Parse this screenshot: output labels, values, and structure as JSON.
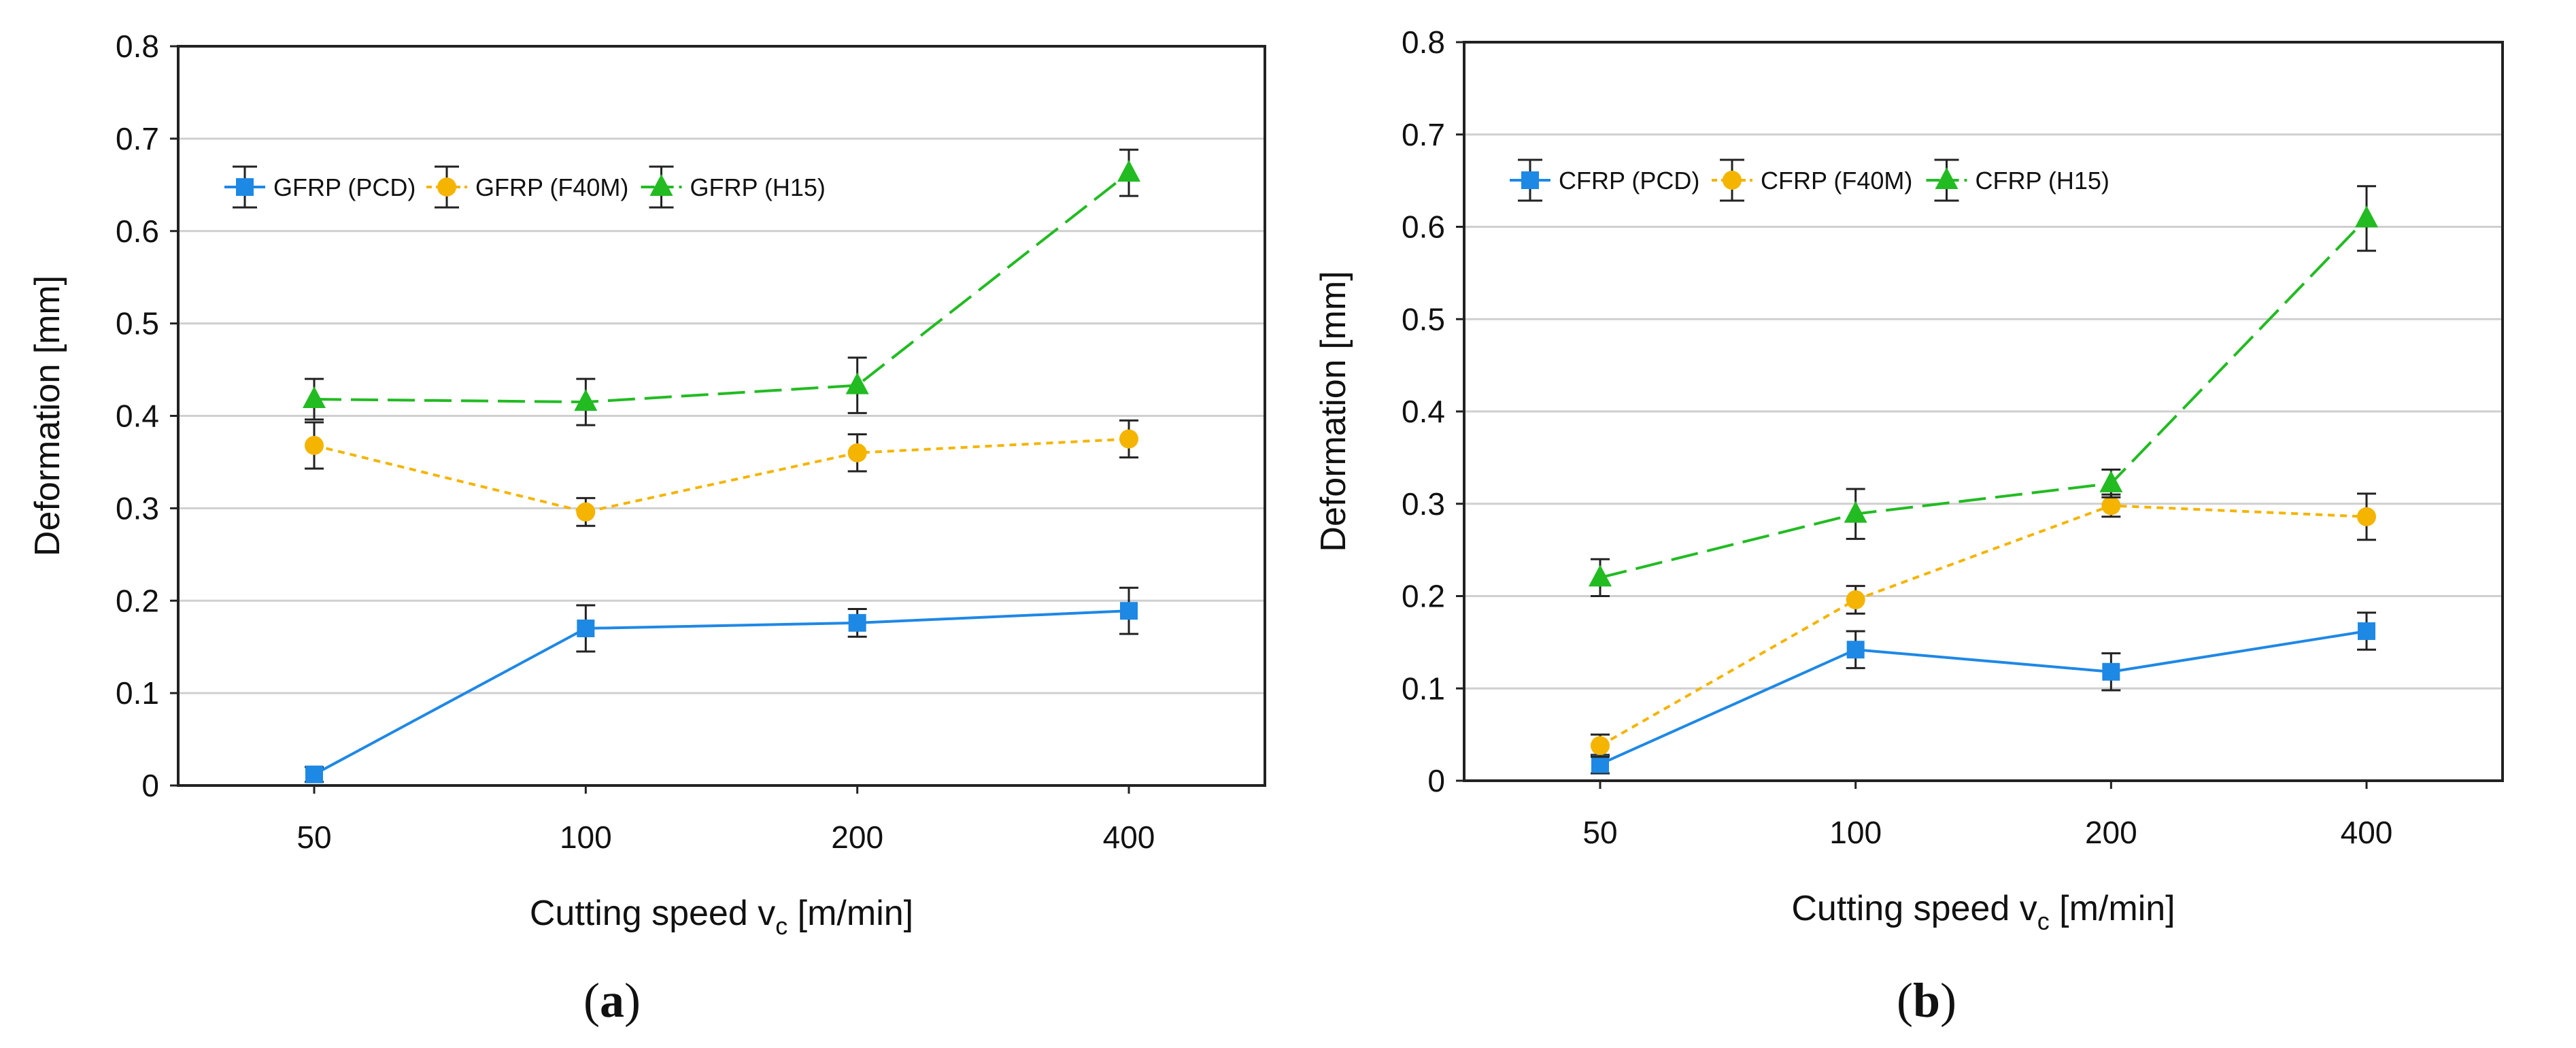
{
  "chart_data": [
    {
      "type": "line",
      "caption": "a",
      "categories": [
        "50",
        "100",
        "200",
        "400"
      ],
      "ylabel": "Deformation [mm]",
      "xlabel": {
        "main": "Cutting speed v",
        "sub": "c",
        "unit": " [m/min]"
      },
      "ylim": [
        0,
        0.8
      ],
      "yticks": [
        "0",
        "0.1",
        "0.2",
        "0.3",
        "0.4",
        "0.5",
        "0.6",
        "0.7",
        "0.8"
      ],
      "grid": "horizontal",
      "legend": "top-left",
      "series": [
        {
          "name": "GFRP (PCD)",
          "color": "#1e88e5",
          "marker": "square",
          "dash": "solid",
          "values": [
            0.012,
            0.17,
            0.176,
            0.189
          ],
          "errors": [
            0.008,
            0.025,
            0.015,
            0.025
          ]
        },
        {
          "name": "GFRP (F40M)",
          "color": "#f4b400",
          "marker": "circle",
          "dash": "dotted",
          "values": [
            0.368,
            0.296,
            0.36,
            0.375
          ],
          "errors": [
            0.025,
            0.015,
            0.02,
            0.02
          ]
        },
        {
          "name": "GFRP (H15)",
          "color": "#22bb22",
          "marker": "triangle",
          "dash": "dashed",
          "values": [
            0.418,
            0.415,
            0.433,
            0.663
          ],
          "errors": [
            0.022,
            0.025,
            0.03,
            0.025
          ]
        }
      ]
    },
    {
      "type": "line",
      "caption": "b",
      "categories": [
        "50",
        "100",
        "200",
        "400"
      ],
      "ylabel": "Deformation [mm]",
      "xlabel": {
        "main": "Cutting speed v",
        "sub": "c",
        "unit": " [m/min]"
      },
      "ylim": [
        0,
        0.8
      ],
      "yticks": [
        "0",
        "0.1",
        "0.2",
        "0.3",
        "0.4",
        "0.5",
        "0.6",
        "0.7",
        "0.8"
      ],
      "grid": "horizontal",
      "legend": "top-left",
      "series": [
        {
          "name": "CFRP (PCD)",
          "color": "#1e88e5",
          "marker": "square",
          "dash": "solid",
          "values": [
            0.018,
            0.142,
            0.118,
            0.162
          ],
          "errors": [
            0.01,
            0.02,
            0.02,
            0.02
          ]
        },
        {
          "name": "CFRP (F40M)",
          "color": "#f4b400",
          "marker": "circle",
          "dash": "dotted",
          "values": [
            0.038,
            0.196,
            0.298,
            0.286
          ],
          "errors": [
            0.012,
            0.015,
            0.012,
            0.025
          ]
        },
        {
          "name": "CFRP (H15)",
          "color": "#22bb22",
          "marker": "triangle",
          "dash": "dashed",
          "values": [
            0.22,
            0.289,
            0.322,
            0.609
          ],
          "errors": [
            0.02,
            0.027,
            0.015,
            0.035
          ]
        }
      ]
    }
  ]
}
